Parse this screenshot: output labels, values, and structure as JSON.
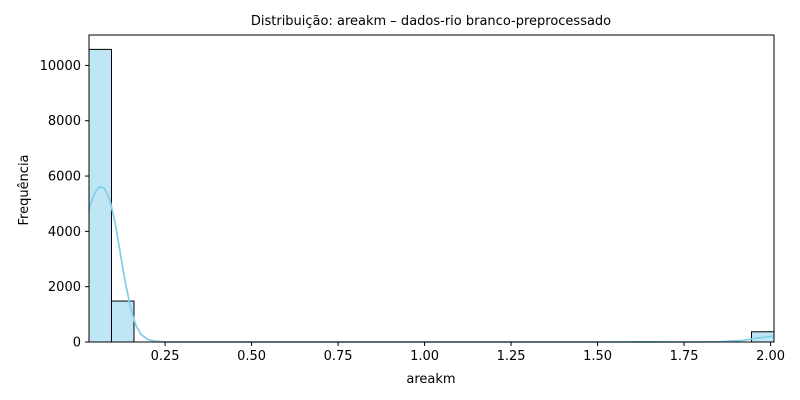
{
  "chart_data": {
    "type": "histogram",
    "title": "Distribuição: areakm – dados-rio branco-preprocessado",
    "xlabel": "areakm",
    "ylabel": "Frequência",
    "xlim": [
      0.03,
      2.01
    ],
    "ylim": [
      0,
      11100
    ],
    "xticks": [
      "0.25",
      "0.50",
      "0.75",
      "1.00",
      "1.25",
      "1.50",
      "1.75",
      "2.00"
    ],
    "xtick_values": [
      0.25,
      0.5,
      0.75,
      1.0,
      1.25,
      1.5,
      1.75,
      2.0
    ],
    "yticks": [
      "0",
      "2000",
      "4000",
      "6000",
      "8000",
      "10000"
    ],
    "ytick_values": [
      0,
      2000,
      4000,
      6000,
      8000,
      10000
    ],
    "bins": [
      {
        "x0": 0.03,
        "x1": 0.095,
        "count": 10580
      },
      {
        "x0": 0.095,
        "x1": 0.16,
        "count": 1480
      },
      {
        "x0": 1.945,
        "x1": 2.01,
        "count": 370
      }
    ],
    "kde": {
      "x": [
        0.03,
        0.045,
        0.06,
        0.075,
        0.09,
        0.105,
        0.12,
        0.135,
        0.15,
        0.165,
        0.18,
        0.2,
        0.22,
        0.25,
        0.3,
        0.5,
        1.0,
        1.5,
        1.85,
        1.92,
        1.96,
        2.0,
        2.01
      ],
      "y": [
        4800,
        5350,
        5620,
        5550,
        5150,
        4350,
        3250,
        2150,
        1250,
        620,
        280,
        90,
        30,
        5,
        0,
        0,
        0,
        0,
        10,
        60,
        140,
        200,
        210
      ]
    },
    "colors": {
      "bar_fill": "#bfe6f5",
      "bar_edge": "#000000",
      "kde_line": "#87ceeb"
    },
    "grid": false
  }
}
